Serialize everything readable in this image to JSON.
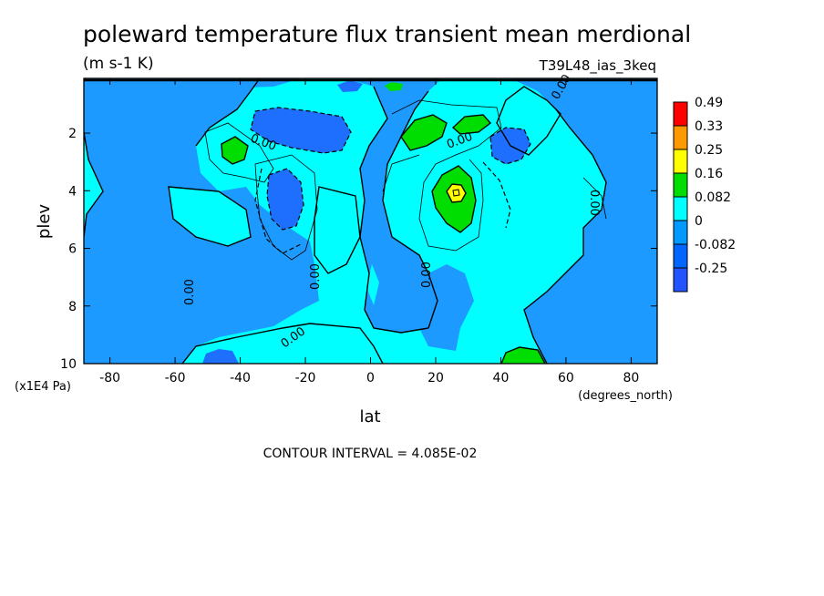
{
  "chart_data": {
    "type": "heatmap",
    "title": "poleward temperature flux transient mean merdional",
    "units": "(m s-1 K)",
    "run_label": "T39L48_ias_3keq",
    "xlabel": "lat",
    "x_units": "(degrees_north)",
    "ylabel": "plev",
    "y_units": "(x1E4 Pa)",
    "xlim": [
      -88,
      88
    ],
    "ylim": [
      10,
      0.1
    ],
    "x_ticks": [
      "-80",
      "-60",
      "-40",
      "-20",
      "0",
      "20",
      "40",
      "60",
      "80"
    ],
    "x_tick_values": [
      -80,
      -60,
      -40,
      -20,
      0,
      20,
      40,
      60,
      80
    ],
    "y_ticks": [
      "2",
      "4",
      "6",
      "8",
      "10"
    ],
    "y_tick_values": [
      2,
      4,
      6,
      8,
      10
    ],
    "contour_interval_text": "CONTOUR INTERVAL = 4.085E-02",
    "contour_labels": [
      "0.00",
      "0.00",
      "0.00",
      "0.00",
      "0.00",
      "0.00",
      "0.00",
      "0.00"
    ],
    "colorbar": {
      "levels": [
        "0.49",
        "0.33",
        "0.25",
        "0.16",
        "0.082",
        "0",
        "-0.082",
        "-0.25"
      ],
      "colors": [
        "#ff0000",
        "#ff9900",
        "#ffff00",
        "#00dd00",
        "#00ffff",
        "#0099ff",
        "#0066ff",
        "#2255ff"
      ]
    },
    "palette": {
      "band_neg_strong": "#1f6fff",
      "band_neg": "#1c9aff",
      "band_zero": "#00ffff",
      "band_pos": "#00dd00",
      "band_pos2": "#ffff00",
      "band_pos3": "#ff9900"
    },
    "features": [
      {
        "name": "background-positive",
        "level": "band_zero",
        "lat_range": [
          -88,
          88
        ],
        "plev_range": [
          0.1,
          10
        ]
      },
      {
        "name": "negative-sh-midlat",
        "level": "band_neg",
        "center": [
          -40,
          5.5
        ]
      },
      {
        "name": "negative-nh-highlat",
        "level": "band_neg",
        "center": [
          70,
          5
        ]
      },
      {
        "name": "negative-tropics-low",
        "level": "band_neg",
        "center": [
          0,
          7
        ]
      },
      {
        "name": "strong-negative-upper-sh",
        "level": "band_neg_strong",
        "center": [
          -27,
          1.9
        ]
      },
      {
        "name": "strong-negative-sh-mid",
        "level": "band_neg_strong",
        "center": [
          -26,
          4.3
        ]
      },
      {
        "name": "strong-negative-nh-upper",
        "level": "band_neg_strong",
        "center": [
          42,
          2.5
        ]
      },
      {
        "name": "positive-sh-upper",
        "level": "band_pos",
        "center": [
          -42,
          2.6
        ]
      },
      {
        "name": "positive-nh-upper",
        "level": "band_pos",
        "center": [
          17,
          2.0
        ]
      },
      {
        "name": "positive-nh-upper-2",
        "level": "band_pos",
        "center": [
          31,
          1.8
        ]
      },
      {
        "name": "positive-nh-mid",
        "level": "band_pos",
        "center": [
          27,
          4.3
        ]
      },
      {
        "name": "positive-nh-mid-peak",
        "level": "band_pos2",
        "center": [
          26,
          4.0
        ]
      },
      {
        "name": "positive-nh-surface",
        "level": "band_pos",
        "center": [
          46,
          9.8
        ]
      },
      {
        "name": "strong-negative-sh-surface",
        "level": "band_neg_strong",
        "center": [
          -46,
          9.9
        ]
      }
    ]
  }
}
